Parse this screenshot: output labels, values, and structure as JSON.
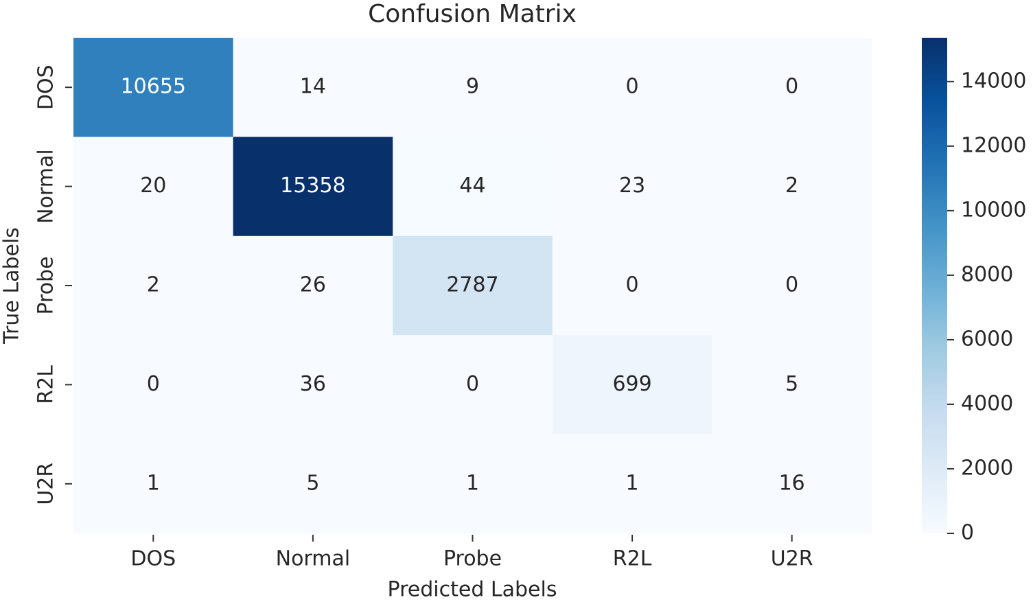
{
  "chart_data": {
    "type": "heatmap",
    "title": "Confusion Matrix",
    "x_label": "Predicted Labels",
    "y_label": "True Labels",
    "x_categories": [
      "DOS",
      "Normal",
      "Probe",
      "R2L",
      "U2R"
    ],
    "y_categories": [
      "DOS",
      "Normal",
      "Probe",
      "R2L",
      "U2R"
    ],
    "values": [
      [
        10655,
        14,
        9,
        0,
        0
      ],
      [
        20,
        15358,
        44,
        23,
        2
      ],
      [
        2,
        26,
        2787,
        0,
        0
      ],
      [
        0,
        36,
        0,
        699,
        5
      ],
      [
        1,
        5,
        1,
        1,
        16
      ]
    ],
    "colorscale": [
      "#f7fbff",
      "#deebf7",
      "#c6dbef",
      "#9ecae1",
      "#6baed6",
      "#4292c6",
      "#2171b5",
      "#08519c",
      "#08306b"
    ],
    "zlim": [
      0,
      15358
    ],
    "zticks": [
      0,
      2000,
      4000,
      6000,
      8000,
      10000,
      12000,
      14000
    ]
  }
}
